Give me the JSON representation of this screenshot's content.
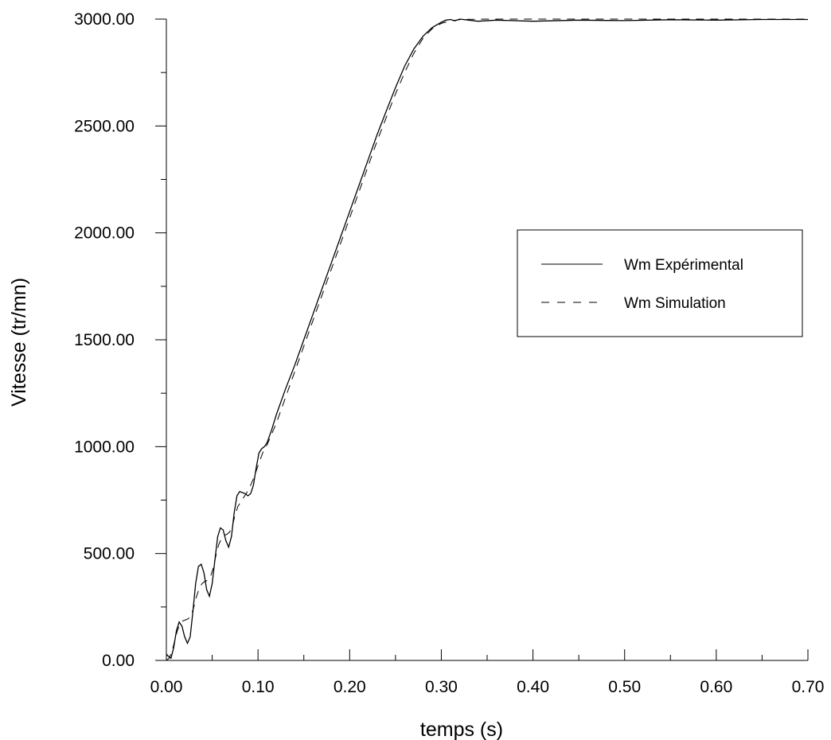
{
  "chart_data": {
    "type": "line",
    "title": "",
    "xlabel": "temps (s)",
    "ylabel": "Vitesse (tr/mn)",
    "xlim": [
      0,
      0.7
    ],
    "ylim": [
      0,
      3000
    ],
    "xticks": [
      "0.00",
      "0.10",
      "0.20",
      "0.30",
      "0.40",
      "0.50",
      "0.60",
      "0.70"
    ],
    "yticks": [
      "0.00",
      "500.00",
      "1000.00",
      "1500.00",
      "2000.00",
      "2500.00",
      "3000.00"
    ],
    "grid": false,
    "legend_position": "right",
    "series": [
      {
        "name": "Wm Expérimental",
        "style": "solid",
        "color": "#000000",
        "x": [
          0,
          0.002,
          0.005,
          0.008,
          0.011,
          0.014,
          0.017,
          0.02,
          0.023,
          0.026,
          0.029,
          0.032,
          0.035,
          0.038,
          0.041,
          0.044,
          0.047,
          0.05,
          0.053,
          0.056,
          0.059,
          0.062,
          0.065,
          0.068,
          0.071,
          0.074,
          0.077,
          0.08,
          0.083,
          0.086,
          0.089,
          0.092,
          0.095,
          0.098,
          0.101,
          0.104,
          0.107,
          0.11,
          0.115,
          0.12,
          0.13,
          0.14,
          0.15,
          0.16,
          0.17,
          0.18,
          0.19,
          0.2,
          0.21,
          0.22,
          0.23,
          0.24,
          0.25,
          0.26,
          0.27,
          0.28,
          0.29,
          0.3,
          0.305,
          0.31,
          0.315,
          0.32,
          0.33,
          0.34,
          0.36,
          0.4,
          0.45,
          0.5,
          0.55,
          0.6,
          0.65,
          0.7
        ],
        "y": [
          30,
          20,
          10,
          60,
          140,
          180,
          160,
          110,
          80,
          110,
          230,
          360,
          440,
          450,
          410,
          330,
          300,
          360,
          470,
          580,
          620,
          610,
          560,
          530,
          580,
          690,
          770,
          790,
          785,
          780,
          770,
          780,
          820,
          900,
          970,
          990,
          1000,
          1020,
          1080,
          1150,
          1270,
          1380,
          1500,
          1620,
          1740,
          1860,
          1980,
          2100,
          2220,
          2340,
          2460,
          2570,
          2680,
          2780,
          2860,
          2920,
          2960,
          2985,
          2995,
          2998,
          2992,
          3000,
          2995,
          2990,
          2995,
          2990,
          2995,
          2993,
          2997,
          2995,
          2998,
          2998
        ]
      },
      {
        "name": "Wm Simulation",
        "style": "dashed",
        "color": "#000000",
        "x": [
          0,
          0.003,
          0.006,
          0.009,
          0.012,
          0.015,
          0.018,
          0.021,
          0.024,
          0.027,
          0.03,
          0.033,
          0.036,
          0.039,
          0.042,
          0.045,
          0.048,
          0.051,
          0.054,
          0.057,
          0.06,
          0.063,
          0.066,
          0.069,
          0.072,
          0.075,
          0.078,
          0.081,
          0.084,
          0.087,
          0.09,
          0.095,
          0.1,
          0.105,
          0.11,
          0.12,
          0.13,
          0.14,
          0.15,
          0.16,
          0.17,
          0.18,
          0.19,
          0.2,
          0.21,
          0.22,
          0.23,
          0.24,
          0.25,
          0.26,
          0.27,
          0.28,
          0.29,
          0.3,
          0.31,
          0.32,
          0.33,
          0.35,
          0.4,
          0.45,
          0.5,
          0.55,
          0.6,
          0.65,
          0.7
        ],
        "y": [
          0,
          10,
          40,
          90,
          140,
          170,
          185,
          190,
          195,
          210,
          250,
          300,
          340,
          360,
          370,
          375,
          390,
          430,
          490,
          540,
          570,
          585,
          590,
          600,
          630,
          680,
          720,
          740,
          760,
          780,
          800,
          850,
          910,
          970,
          1010,
          1110,
          1230,
          1350,
          1470,
          1590,
          1710,
          1830,
          1950,
          2070,
          2190,
          2310,
          2430,
          2540,
          2650,
          2750,
          2840,
          2910,
          2955,
          2980,
          2992,
          2997,
          2999,
          3000,
          3000,
          3000,
          3000,
          3000,
          3000,
          3000,
          3000
        ]
      }
    ]
  }
}
